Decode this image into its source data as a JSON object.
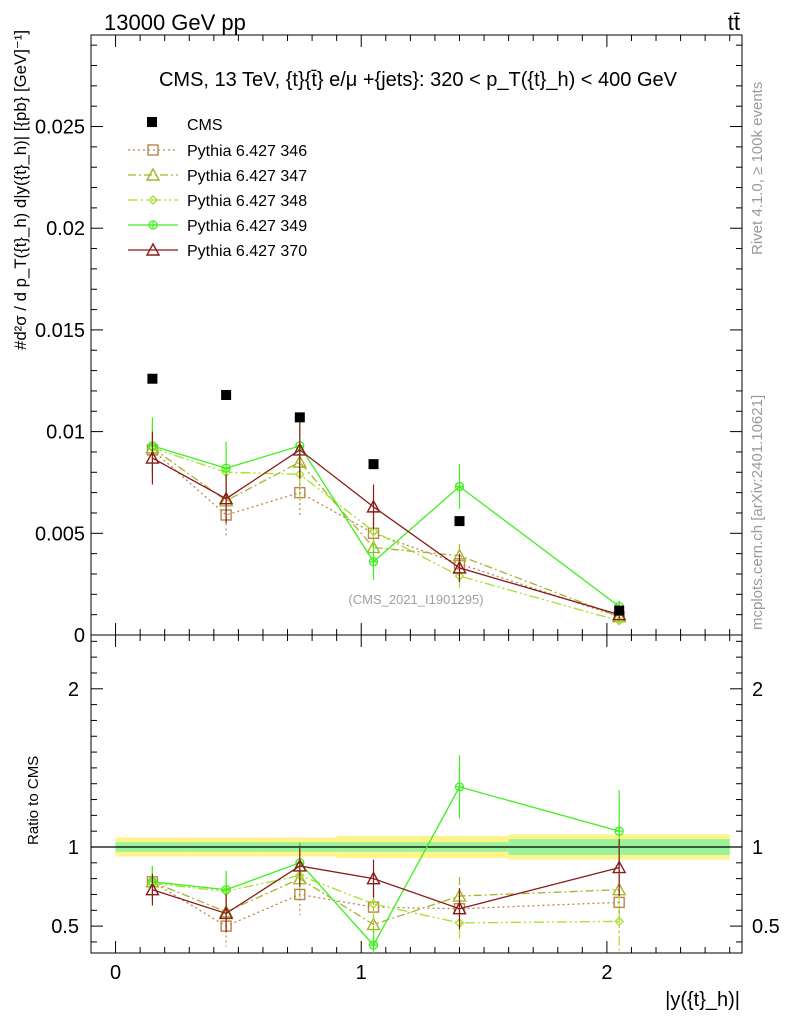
{
  "header": {
    "left": "13000 GeV pp",
    "right": "tt̄"
  },
  "side": {
    "rivet": "Rivet 4.1.0, ≥ 100k events",
    "mcplots": "mcplots.cern.ch [arXiv:2401.10621]"
  },
  "chart_data": [
    {
      "type": "scatter",
      "panel": "main",
      "title": "CMS, 13 TeV, {t}{t̄} e/μ +{jets}: 320 <  p_T({t}_h) < 400 GeV",
      "watermark": "(CMS_2021_I1901295)",
      "ylabel": "#d²σ / d p_T({t}_h) d|y({t}_h)| [{pb} [GeV]⁻¹]",
      "xlim": [
        -0.1,
        2.55
      ],
      "ylim": [
        0,
        0.0295
      ],
      "yticks": [
        0,
        0.005,
        0.01,
        0.015,
        0.02,
        0.025
      ],
      "ytick_labels": [
        "0",
        "0.005",
        "0.01",
        "0.015",
        "0.02",
        "0.025"
      ],
      "x": [
        0.15,
        0.45,
        0.75,
        1.05,
        1.4,
        2.05
      ],
      "data": {
        "name": "CMS",
        "values": [
          0.0126,
          0.0118,
          0.0107,
          0.0084,
          0.0056,
          0.0012
        ]
      },
      "series": [
        {
          "name": "Pythia 6.427 346",
          "color": "#b8864b",
          "dash": "2,3",
          "marker": "square",
          "values": [
            0.0091,
            0.0059,
            0.007,
            0.005,
            0.0035,
            0.0009
          ],
          "err": [
            0.0012,
            0.001,
            0.0011,
            0.0008,
            0.0006,
            0.0002
          ]
        },
        {
          "name": "Pythia 6.427 347",
          "color": "#a8b32d",
          "dash": "8,3,2,3",
          "marker": "triangle",
          "values": [
            0.0092,
            0.0066,
            0.0085,
            0.0043,
            0.0039,
            0.0009
          ],
          "err": [
            0.0012,
            0.0011,
            0.0012,
            0.0008,
            0.0006,
            0.0002
          ]
        },
        {
          "name": "Pythia 6.427 348",
          "color": "#a6e02a",
          "dash": "10,3,2,3,2,3",
          "marker": "diamond",
          "values": [
            0.0092,
            0.008,
            0.0079,
            0.0051,
            0.0029,
            0.0007
          ],
          "err": [
            0.0012,
            0.0012,
            0.0013,
            0.0009,
            0.0006,
            0.0002
          ]
        },
        {
          "name": "Pythia 6.427 349",
          "color": "#3ef01d",
          "dash": "",
          "marker": "cross",
          "values": [
            0.0093,
            0.0082,
            0.0093,
            0.0036,
            0.0073,
            0.0014
          ],
          "err": [
            0.0014,
            0.0013,
            0.0014,
            0.0009,
            0.0011,
            0.0003
          ]
        },
        {
          "name": "Pythia 6.427 370",
          "color": "#8b1a1a",
          "dash": "",
          "marker": "triangle",
          "values": [
            0.0087,
            0.0067,
            0.0091,
            0.0063,
            0.0033,
            0.001
          ],
          "err": [
            0.0013,
            0.0012,
            0.0014,
            0.0011,
            0.0007,
            0.0002
          ]
        }
      ]
    },
    {
      "type": "scatter",
      "panel": "ratio",
      "ylabel": "Ratio to CMS",
      "xlabel": "|y({t}_h)|",
      "xlim": [
        -0.1,
        2.55
      ],
      "ylim": [
        0.33,
        2.34
      ],
      "yticks": [
        0.5,
        1,
        2
      ],
      "ytick_labels": [
        "0.5",
        "1",
        "2"
      ],
      "xticks": [
        0,
        1,
        2
      ],
      "xtick_labels": [
        "0",
        "1",
        "2"
      ],
      "x": [
        0.15,
        0.45,
        0.75,
        1.05,
        1.4,
        2.05
      ],
      "bands": {
        "bins": [
          0,
          0.3,
          0.6,
          0.9,
          1.2,
          1.6,
          2.5
        ],
        "stat": [
          0.03,
          0.03,
          0.03,
          0.03,
          0.03,
          0.05
        ],
        "total": [
          0.06,
          0.06,
          0.06,
          0.07,
          0.07,
          0.08
        ]
      },
      "series": [
        {
          "name": "Pythia 6.427 346",
          "values": [
            0.78,
            0.5,
            0.7,
            0.62,
            0.61,
            0.65
          ],
          "err": [
            0.1,
            0.13,
            0.13,
            0.09,
            0.12,
            0.2
          ]
        },
        {
          "name": "Pythia 6.427 347",
          "values": [
            0.78,
            0.59,
            0.8,
            0.51,
            0.69,
            0.73
          ],
          "err": [
            0.1,
            0.13,
            0.12,
            0.09,
            0.12,
            0.2
          ]
        },
        {
          "name": "Pythia 6.427 348",
          "values": [
            0.77,
            0.72,
            0.82,
            0.64,
            0.52,
            0.53
          ],
          "err": [
            0.1,
            0.11,
            0.13,
            0.1,
            0.11,
            0.2
          ]
        },
        {
          "name": "Pythia 6.427 349",
          "values": [
            0.78,
            0.73,
            0.9,
            0.38,
            1.38,
            1.1
          ],
          "err": [
            0.1,
            0.12,
            0.13,
            0.1,
            0.2,
            0.26
          ]
        },
        {
          "name": "Pythia 6.427 370",
          "values": [
            0.73,
            0.58,
            0.88,
            0.8,
            0.61,
            0.87
          ],
          "err": [
            0.1,
            0.12,
            0.13,
            0.12,
            0.13,
            0.18
          ]
        }
      ]
    }
  ]
}
